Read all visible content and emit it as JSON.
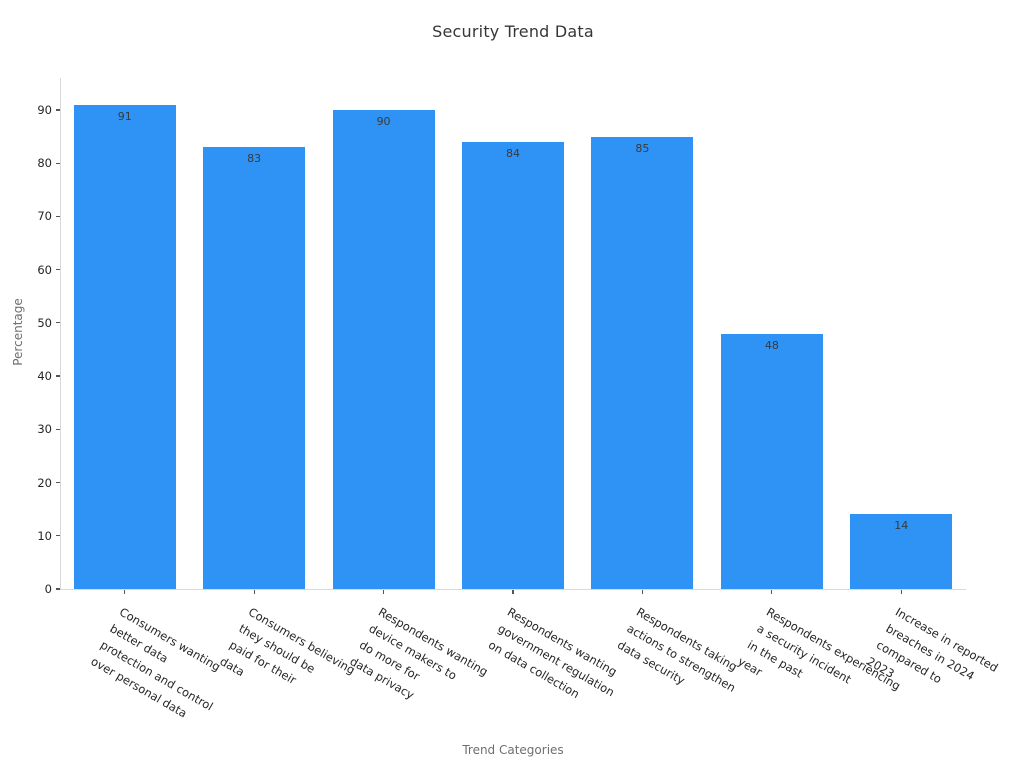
{
  "page": {
    "background_color": "#ffffff"
  },
  "colors": {
    "bar": "#2e93f5",
    "spine": "#d9d9d9",
    "tick_mark": "#555555",
    "tick_label_text": "#262626",
    "bar_value_text": "#3a3a3a",
    "title_text": "#363636",
    "axis_title_text": "#6f6f6f"
  },
  "chart_data": {
    "type": "bar",
    "title": "Security Trend Data",
    "xlabel": "Trend Categories",
    "ylabel": "Percentage",
    "categories": [
      "Consumers wanting better data protection and control over personal data",
      "Consumers believing they should be paid for their data",
      "Respondents wanting device makers to do more for data privacy",
      "Respondents wanting government regulation on data collection",
      "Respondents taking actions to strengthen data security",
      "Respondents experiencing a security incident in the past year",
      "Increase in reported breaches in 2024 compared to 2023"
    ],
    "category_lines": [
      [
        "Consumers wanting",
        "better data",
        "protection and control",
        "over personal data"
      ],
      [
        "Consumers believing",
        "they should be",
        "paid for their",
        "data"
      ],
      [
        "Respondents wanting",
        "device makers to",
        "do more for",
        "data privacy"
      ],
      [
        "Respondents wanting",
        "government regulation",
        "on data collection"
      ],
      [
        "Respondents taking",
        "actions to strengthen",
        "data security"
      ],
      [
        "Respondents experiencing",
        "a security incident",
        "in the past",
        "year"
      ],
      [
        "Increase in reported",
        "breaches in 2024",
        "compared to",
        "2023"
      ]
    ],
    "values": [
      91,
      83,
      90,
      84,
      85,
      48,
      14
    ],
    "bar_value_labels": [
      "91",
      "83",
      "90",
      "84",
      "85",
      "48",
      "14"
    ],
    "yticks": [
      0,
      10,
      20,
      30,
      40,
      50,
      60,
      70,
      80,
      90
    ],
    "ylim": [
      0,
      96
    ],
    "grid": false,
    "legend": null,
    "label_rotation_deg": 30
  }
}
